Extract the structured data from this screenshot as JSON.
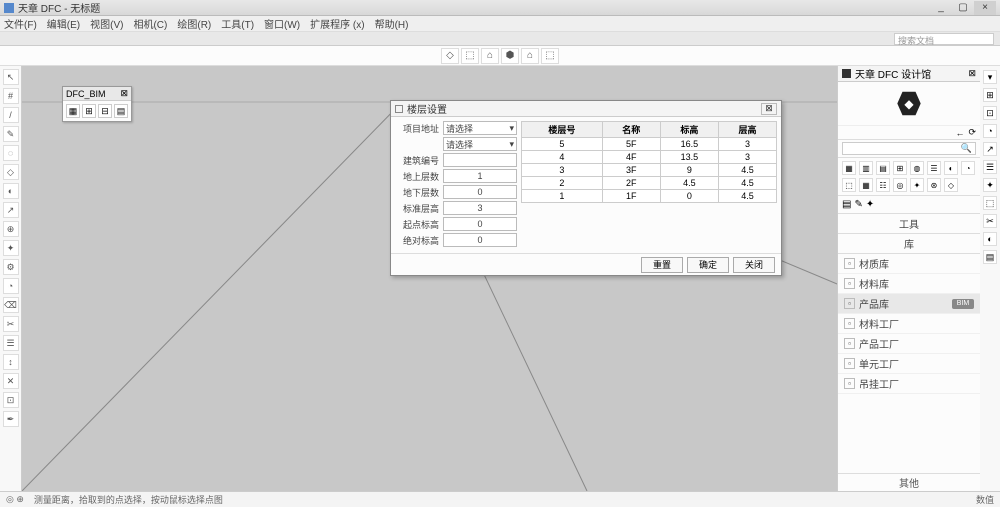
{
  "colors": {
    "canvas": "#c8c8c8",
    "panel": "#fcfcfc",
    "chrome": "#efefef",
    "border": "#cccccc",
    "line": "#888888"
  },
  "window": {
    "app_title": "天章 DFC - 无标题",
    "min": "_",
    "max": "▢",
    "close": "×"
  },
  "menu": [
    "文件(F)",
    "编辑(E)",
    "视图(V)",
    "相机(C)",
    "绘图(R)",
    "工具(T)",
    "窗口(W)",
    "扩展程序 (x)",
    "帮助(H)"
  ],
  "search_placeholder": "搜索文档",
  "top_icons": [
    "◇",
    "⬚",
    "⌂",
    "⬢",
    "⌂",
    "⬚"
  ],
  "left_tools": [
    "↖",
    "#",
    "/",
    "✎",
    "◌",
    "◇",
    "◐",
    "↗",
    "⊕",
    "✦",
    "⚙",
    "◔",
    "⌫",
    "✂",
    "☰",
    "↕",
    "✕",
    "⊡",
    "✒"
  ],
  "float": {
    "title": "DFC_BIM",
    "close": "⊠",
    "icons": [
      "▦",
      "⊞",
      "⊟",
      "▤"
    ]
  },
  "dialog": {
    "title": "楼层设置",
    "close": "⊠",
    "left_labels": {
      "addr": "项目地址",
      "addr_val": "请选择",
      "addr2_val": "请选择",
      "buildno": "建筑编号",
      "buildno_val": "",
      "above": "地上层数",
      "above_val": "1",
      "below": "地下层数",
      "below_val": "0",
      "stdh": "标准层高",
      "stdh_val": "3",
      "starth": "起点标高",
      "starth_val": "0",
      "absh": "绝对标高",
      "absh_val": "0"
    },
    "columns": [
      "楼层号",
      "名称",
      "标高",
      "层高"
    ],
    "rows": [
      [
        "5",
        "5F",
        "16.5",
        "3"
      ],
      [
        "4",
        "4F",
        "13.5",
        "3"
      ],
      [
        "3",
        "3F",
        "9",
        "4.5"
      ],
      [
        "2",
        "2F",
        "4.5",
        "4.5"
      ],
      [
        "1",
        "1F",
        "0",
        "4.5"
      ]
    ],
    "buttons": {
      "reset": "重置",
      "ok": "确定",
      "cancel": "关闭"
    }
  },
  "right": {
    "title": "天章 DFC 设计馆",
    "close": "⊠",
    "nav_back": "←",
    "nav_fwd": "⟳",
    "search_icon": "🔍",
    "grid_icons": [
      "▦",
      "▥",
      "▤",
      "⊞",
      "◍",
      "☰",
      "◐",
      "◔",
      "⬚",
      "▦",
      "☷",
      "◎",
      "✦",
      "⊛",
      "◇"
    ],
    "opt_icons": [
      "▤",
      "✎",
      "✦"
    ],
    "section_tool": "工具",
    "section_lib": "库",
    "lib_items": [
      "材质库",
      "材料库",
      "产品库",
      "材料工厂",
      "产品工厂",
      "单元工厂",
      "吊挂工厂"
    ],
    "lib_sel_index": 2,
    "lib_tag": "BIM",
    "other": "其他"
  },
  "right_tools": [
    "▾",
    "⊞",
    "⊡",
    "◔",
    "↗",
    "☰",
    "✦",
    "⬚",
    "✂",
    "◐",
    "▤"
  ],
  "status": {
    "left1": "◎ ⊕",
    "left2": "测量距离，拾取到的点选择，按动鼠标选择点图",
    "right": "数值"
  }
}
